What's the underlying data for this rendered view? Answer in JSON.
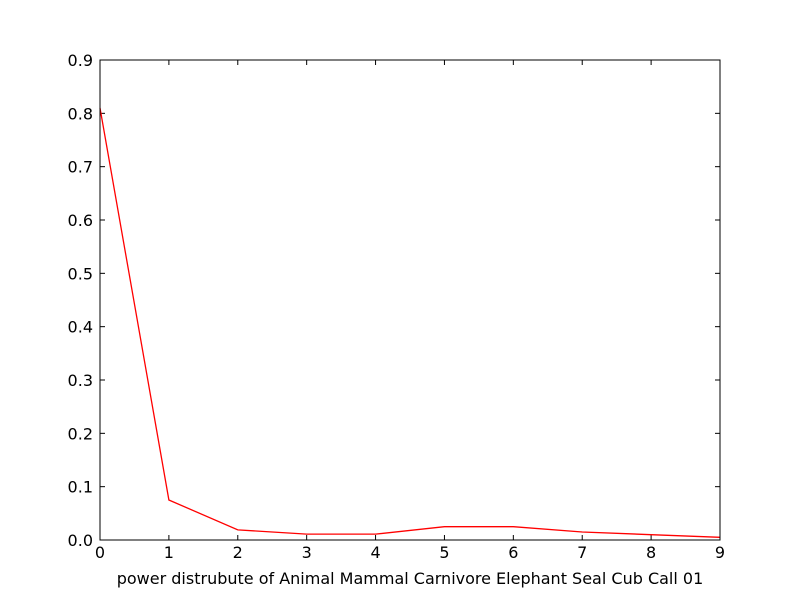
{
  "chart_data": {
    "type": "line",
    "title": "",
    "xlabel": "power distrubute of Animal Mammal Carnivore Elephant Seal Cub Call 01",
    "ylabel": "",
    "xlim": [
      0,
      9
    ],
    "ylim": [
      0.0,
      0.9
    ],
    "x_ticks": [
      "0",
      "1",
      "2",
      "3",
      "4",
      "5",
      "6",
      "7",
      "8",
      "9"
    ],
    "y_ticks": [
      "0.0",
      "0.1",
      "0.2",
      "0.3",
      "0.4",
      "0.5",
      "0.6",
      "0.7",
      "0.8",
      "0.9"
    ],
    "grid": false,
    "legend": "none",
    "series": [
      {
        "color": "#ff0000",
        "x": [
          0,
          1,
          2,
          3,
          4,
          5,
          6,
          7,
          8,
          9
        ],
        "y": [
          0.81,
          0.075,
          0.019,
          0.011,
          0.011,
          0.025,
          0.025,
          0.015,
          0.01,
          0.005
        ]
      }
    ]
  }
}
